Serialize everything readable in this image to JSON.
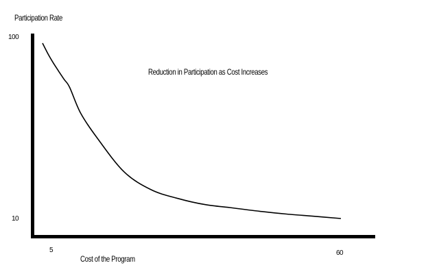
{
  "page": {
    "background_color": "#ffffff",
    "foreground_color": "#000000"
  },
  "chart_data": {
    "type": "line",
    "title": "Reduction in Participation as Cost Increases",
    "xlabel": "Cost of the Program",
    "ylabel": "Participation Rate",
    "x": [
      5,
      6,
      7,
      8,
      9,
      10,
      12,
      15,
      20,
      25,
      30,
      35,
      40,
      45,
      50,
      55,
      60
    ],
    "values": [
      100,
      87,
      77,
      69,
      62,
      56,
      40,
      29,
      18.5,
      14.6,
      13,
      12,
      11.5,
      11,
      10.6,
      10.3,
      10
    ],
    "xlim": [
      5,
      60
    ],
    "ylim": [
      10,
      100
    ],
    "y_scale": "log",
    "x_ticks": [
      "5",
      "60"
    ],
    "y_ticks": [
      "10",
      "100"
    ],
    "grid": false,
    "legend": false,
    "line_color": "#000000",
    "axis_color": "#000000"
  }
}
